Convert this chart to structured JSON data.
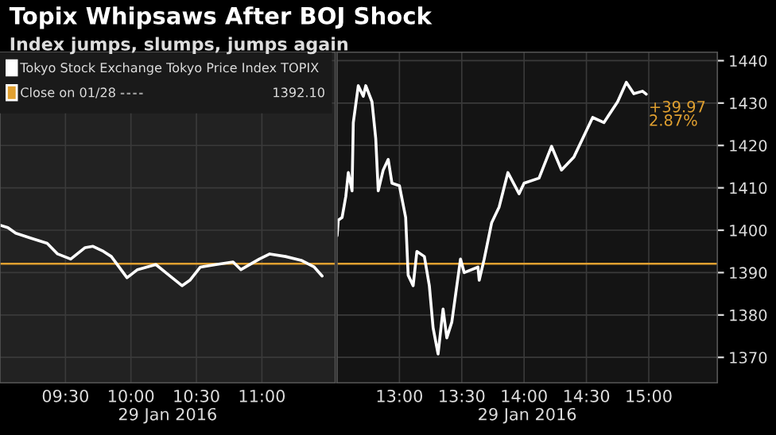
{
  "chart_data": [
    {
      "type": "line",
      "title": "Topix Whipsaws After BOJ Shock",
      "subtitle": "Index jumps, slumps, jumps again",
      "xlabel": "29 Jan 2016",
      "xlim": [
        9.0,
        11.56
      ],
      "xticks": [
        {
          "value": 9.5,
          "label": "09:30"
        },
        {
          "value": 10.0,
          "label": "10:00"
        },
        {
          "value": 10.5,
          "label": "10:30"
        },
        {
          "value": 11.0,
          "label": "11:00"
        }
      ],
      "ylim": [
        1364,
        1442
      ],
      "yticks": [
        1370,
        1380,
        1390,
        1400,
        1410,
        1420,
        1430,
        1440
      ],
      "tick_labels": "x",
      "grid": true,
      "legend": "top left",
      "series": [
        {
          "name": "Tokyo Stock Exchange Tokyo Price Index TOPIX",
          "color": "#ffffff",
          "x": [
            9.0,
            9.06,
            9.12,
            9.24,
            9.36,
            9.44,
            9.54,
            9.65,
            9.71,
            9.79,
            9.85,
            9.97,
            10.05,
            10.19,
            10.29,
            10.39,
            10.45,
            10.53,
            10.65,
            10.78,
            10.84,
            10.98,
            11.06,
            11.18,
            11.3,
            11.4,
            11.46
          ],
          "values": [
            1401.2,
            1400.6,
            1399.3,
            1398.1,
            1396.9,
            1394.4,
            1393.2,
            1395.9,
            1396.2,
            1395.0,
            1393.8,
            1388.8,
            1390.7,
            1391.9,
            1389.4,
            1386.9,
            1388.2,
            1391.3,
            1391.9,
            1392.5,
            1390.7,
            1393.2,
            1394.4,
            1393.8,
            1392.9,
            1391.3,
            1389.2
          ]
        }
      ],
      "ref_lines": [
        {
          "axis": "y",
          "value": 1392.1,
          "label": "Close on 01/28",
          "color": "#e0a030"
        }
      ],
      "annotations": [
        "1392.10"
      ]
    },
    {
      "type": "line",
      "xlabel": "29 Jan 2016",
      "xlim": [
        12.5,
        15.55
      ],
      "xticks": [
        {
          "value": 13.0,
          "label": "13:00"
        },
        {
          "value": 13.5,
          "label": "13:30"
        },
        {
          "value": 14.0,
          "label": "14:00"
        },
        {
          "value": 14.5,
          "label": "14:30"
        },
        {
          "value": 15.0,
          "label": "15:00"
        }
      ],
      "ylim": [
        1364,
        1442
      ],
      "yticks": [
        1370,
        1380,
        1390,
        1400,
        1410,
        1420,
        1430,
        1440
      ],
      "grid": true,
      "series": [
        {
          "color": "#ffffff",
          "x": [
            12.5,
            12.51,
            12.54,
            12.57,
            12.59,
            12.62,
            12.63,
            12.67,
            12.71,
            12.73,
            12.78,
            12.81,
            12.83,
            12.87,
            12.91,
            12.94,
            13.0,
            13.05,
            13.07,
            13.11,
            13.14,
            13.2,
            13.24,
            13.27,
            13.31,
            13.35,
            13.38,
            13.42,
            13.49,
            13.52,
            13.63,
            13.64,
            13.68,
            13.74,
            13.8,
            13.87,
            13.96,
            14.0,
            14.12,
            14.22,
            14.3,
            14.4,
            14.55,
            14.64,
            14.75,
            14.82,
            14.88,
            14.95,
            14.98
          ],
          "values": [
            1398.7,
            1402.4,
            1403.0,
            1408.0,
            1413.6,
            1409.3,
            1425.4,
            1434.1,
            1431.6,
            1434.1,
            1430.3,
            1421.6,
            1409.3,
            1414.2,
            1416.7,
            1411.1,
            1410.5,
            1403.0,
            1389.4,
            1386.9,
            1395.0,
            1393.8,
            1386.9,
            1377.0,
            1370.8,
            1381.4,
            1374.6,
            1378.3,
            1393.2,
            1390.0,
            1391.3,
            1388.2,
            1393.2,
            1401.8,
            1405.5,
            1413.6,
            1408.6,
            1411.1,
            1412.3,
            1419.8,
            1414.2,
            1417.3,
            1426.6,
            1425.4,
            1430.3,
            1434.9,
            1432.2,
            1432.8,
            1432.1
          ]
        }
      ],
      "ref_lines": [
        {
          "axis": "y",
          "value": 1392.1,
          "color": "#e0a030"
        }
      ],
      "annotations": [
        "+39.97",
        "2.87%"
      ]
    }
  ]
}
